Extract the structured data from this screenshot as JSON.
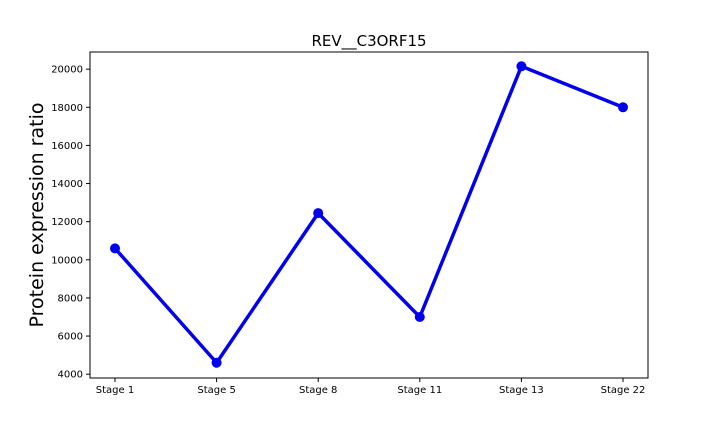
{
  "chart_data": {
    "type": "line",
    "title": "REV__C3ORF15",
    "xlabel": "",
    "ylabel": "Protein expression ratio",
    "categories": [
      "Stage 1",
      "Stage 5",
      "Stage 8",
      "Stage 11",
      "Stage 13",
      "Stage 22"
    ],
    "series": [
      {
        "values": [
          10600,
          4600,
          12450,
          7000,
          20150,
          18000
        ],
        "color": "#0000ee"
      }
    ],
    "ylim": [
      3800,
      20900
    ],
    "yticks": [
      4000,
      6000,
      8000,
      10000,
      12000,
      14000,
      16000,
      18000,
      20000
    ],
    "grid": false,
    "legend": "none"
  }
}
